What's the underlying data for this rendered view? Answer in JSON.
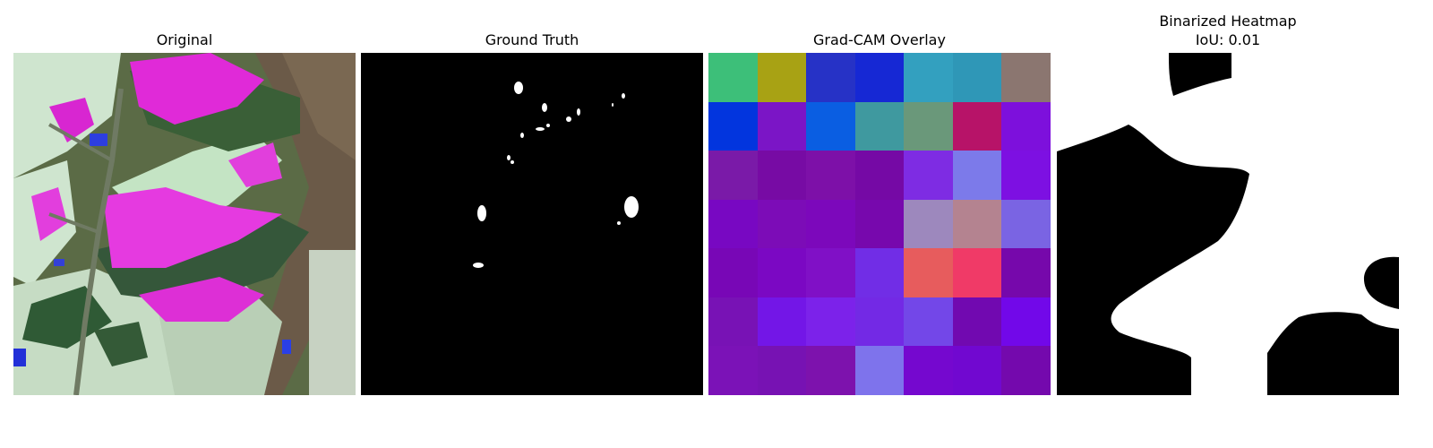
{
  "panels": [
    {
      "title": "Original"
    },
    {
      "title": "Ground Truth"
    },
    {
      "title": "Grad-CAM Overlay"
    },
    {
      "title": "Binarized Heatmap",
      "subtitle": "IoU: 0.01"
    }
  ],
  "gradcam_grid": [
    [
      "#3dbf79",
      "#a8a214",
      "#2632c6",
      "#1628d4",
      "#33a0bf",
      "#2f97b7",
      "#8b7670"
    ],
    [
      "#0235de",
      "#7b15c6",
      "#0a5ee2",
      "#3f999f",
      "#6a987a",
      "#b71368",
      "#7d10dc"
    ],
    [
      "#7a1aa8",
      "#770ba4",
      "#7d10a8",
      "#7509a5",
      "#7e2ce3",
      "#7c7aea",
      "#7d10e2"
    ],
    [
      "#7808c2",
      "#7c0cb7",
      "#7c08bb",
      "#7708ad",
      "#9d88bd",
      "#b48390",
      "#7a64e3"
    ],
    [
      "#7807b6",
      "#7b08c3",
      "#8010c6",
      "#712de6",
      "#e75c5d",
      "#f03a67",
      "#7608ab"
    ],
    [
      "#7812b5",
      "#7316e7",
      "#7c22ea",
      "#7329e5",
      "#7347e8",
      "#7109b0",
      "#7208e9"
    ],
    [
      "#7b12b7",
      "#7712b3",
      "#7d12ad",
      "#7e73ec",
      "#7508cf",
      "#7108d0",
      "#7409ad"
    ]
  ]
}
